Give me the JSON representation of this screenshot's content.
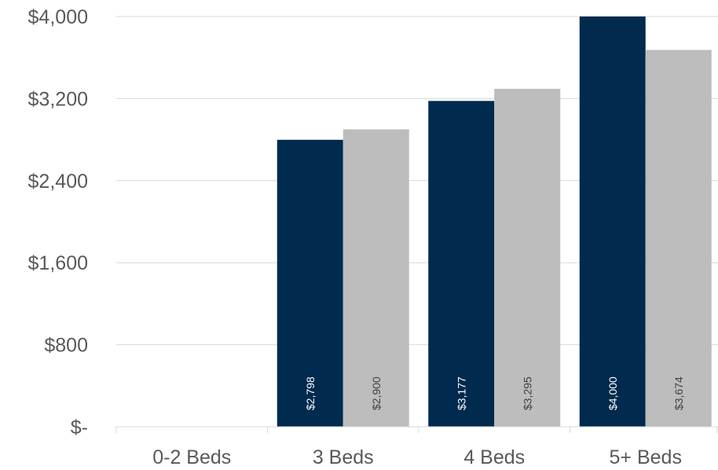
{
  "chart_data": {
    "type": "bar",
    "categories": [
      "0-2 Beds",
      "3 Beds",
      "4 Beds",
      "5+ Beds"
    ],
    "series": [
      {
        "color": "#002A4E",
        "values": [
          null,
          2798,
          3177,
          4000
        ],
        "labels": [
          "",
          "$2,798",
          "$3,177",
          "$4,000"
        ],
        "label_color": "#ffffff"
      },
      {
        "color": "#BCBDBC",
        "values": [
          null,
          2900,
          3295,
          3674
        ],
        "labels": [
          "",
          "$2,900",
          "$3,295",
          "$3,674"
        ],
        "label_color": "#404040"
      }
    ],
    "yticks": [
      {
        "value": 0,
        "label": "$-"
      },
      {
        "value": 800,
        "label": "$800"
      },
      {
        "value": 1600,
        "label": "$1,600"
      },
      {
        "value": 2400,
        "label": "$2,400"
      },
      {
        "value": 3200,
        "label": "$3,200"
      },
      {
        "value": 4000,
        "label": "$4,000"
      }
    ],
    "ylim": [
      0,
      4000
    ],
    "grid": true,
    "legend": "none",
    "title": "",
    "xlabel": "",
    "ylabel": ""
  }
}
